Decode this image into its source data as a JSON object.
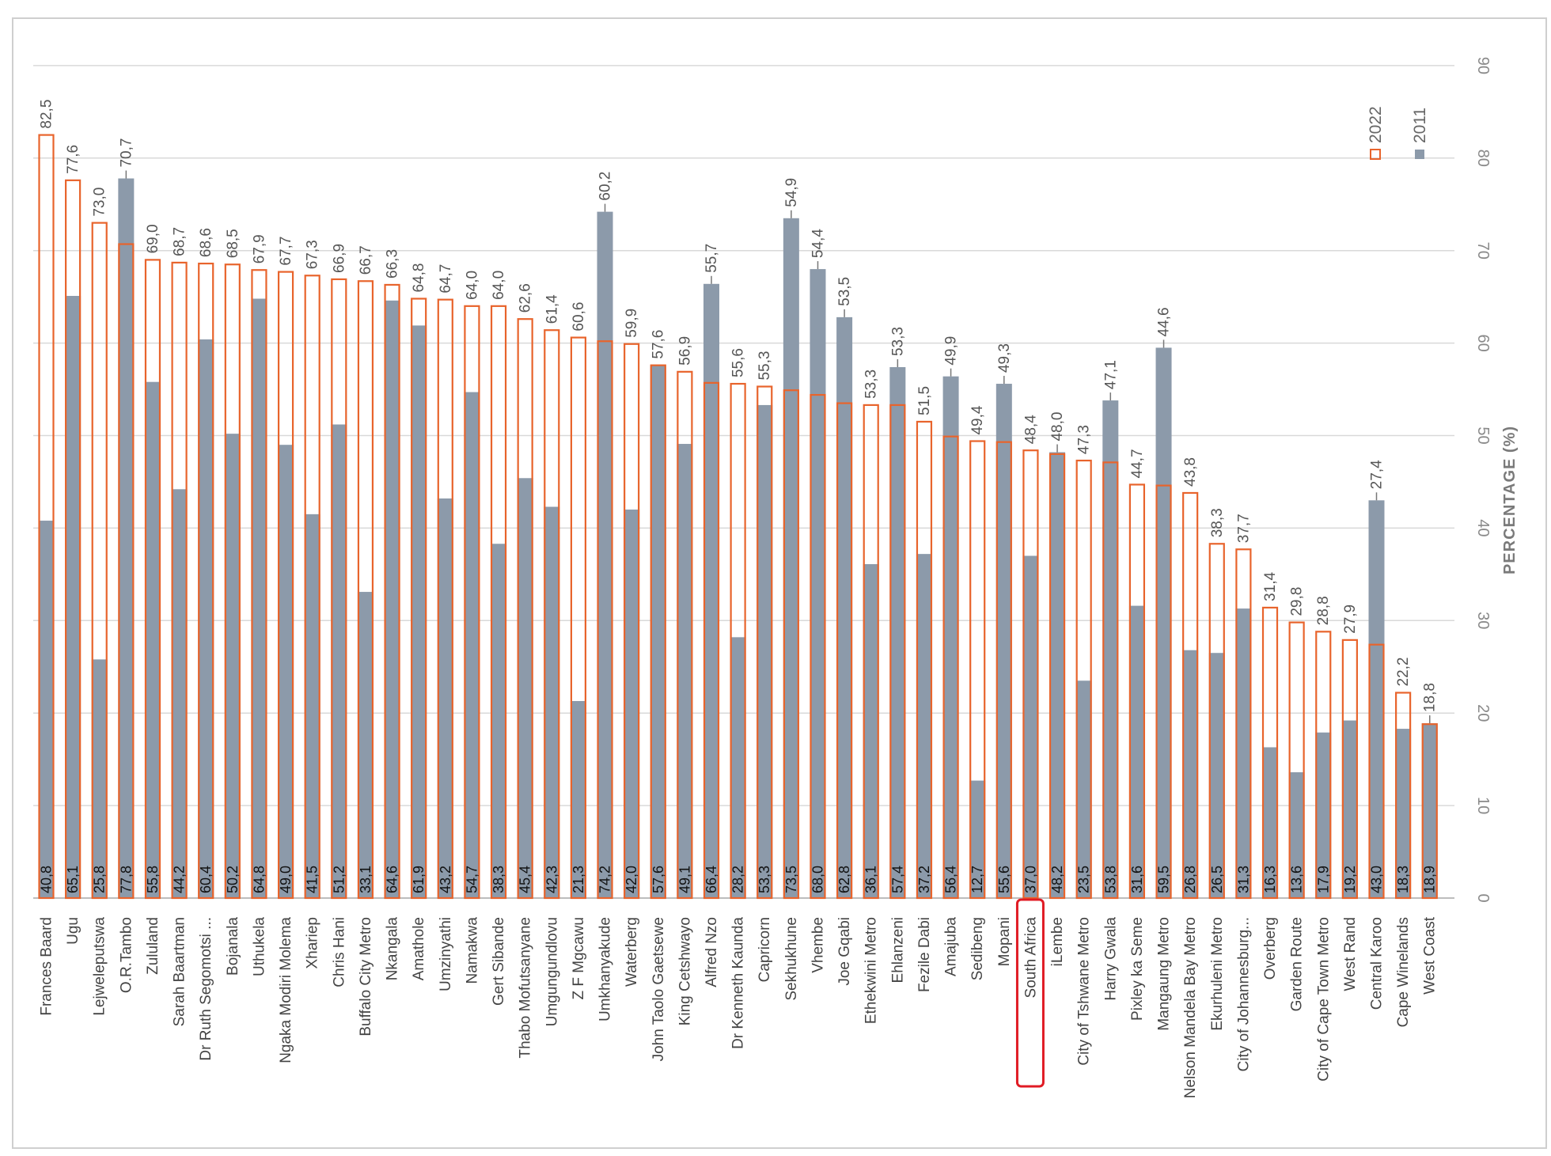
{
  "chart_data": {
    "type": "bar",
    "orientation": "rotated-90-clockwise",
    "title": "",
    "ylabel": "PERCENTAGE (%)",
    "xlabel": "",
    "ylim": [
      0,
      90
    ],
    "yticks": [
      0,
      10,
      20,
      30,
      40,
      50,
      60,
      70,
      80,
      90
    ],
    "highlighted_category": "South Africa",
    "categories": [
      "Frances Baard",
      "Ugu",
      "Lejweleputswa",
      "O.R.Tambo",
      "Zululand",
      "Sarah Baartman",
      "Dr Ruth Segomotsi ...",
      "Bojanala",
      "Uthukela",
      "Ngaka Modiri Molema",
      "Xhariep",
      "Chris Hani",
      "Buffalo City Metro",
      "Nkangala",
      "Amathole",
      "Umzinyathi",
      "Namakwa",
      "Gert Sibande",
      "Thabo Mofutsanyane",
      "Umgungundlovu",
      "Z F Mgcawu",
      "Umkhanyakude",
      "Waterberg",
      "John Taolo Gaetsewe",
      "King Cetshwayo",
      "Alfred Nzo",
      "Dr Kenneth Kaunda",
      "Capricorn",
      "Sekhukhune",
      "Vhembe",
      "Joe Gqabi",
      "Ethekwini Metro",
      "Ehlanzeni",
      "Fezile Dabi",
      "Amajuba",
      "Sedibeng",
      "Mopani",
      "South Africa",
      "iLembe",
      "City of Tshwane Metro",
      "Harry Gwala",
      "Pixley ka Seme",
      "Mangaung Metro",
      "Nelson Mandela Bay Metro",
      "Ekurhuleni Metro",
      "City of Johannesburg...",
      "Overberg",
      "Garden Route",
      "City of Cape Town Metro",
      "West Rand",
      "Central Karoo",
      "Cape Winelands",
      "West Coast"
    ],
    "series": [
      {
        "name": "2022",
        "color": "#e8642c",
        "values": [
          82.5,
          77.6,
          73.0,
          70.7,
          69.0,
          68.7,
          68.6,
          68.5,
          67.9,
          67.7,
          67.3,
          66.9,
          66.7,
          66.3,
          64.8,
          64.7,
          64.0,
          64.0,
          62.6,
          61.4,
          60.6,
          60.2,
          59.9,
          57.6,
          56.9,
          55.7,
          55.6,
          55.3,
          54.9,
          54.4,
          53.5,
          53.3,
          53.3,
          51.5,
          49.9,
          49.4,
          49.3,
          48.4,
          48.0,
          47.3,
          47.1,
          44.7,
          44.6,
          43.8,
          38.3,
          37.7,
          31.4,
          29.8,
          28.8,
          27.9,
          27.4,
          22.2,
          18.8
        ]
      },
      {
        "name": "2011",
        "color": "#8c9aaa",
        "values": [
          40.8,
          65.1,
          25.8,
          77.8,
          55.8,
          44.2,
          60.4,
          50.2,
          64.8,
          49.0,
          41.5,
          51.2,
          33.1,
          64.6,
          61.9,
          43.2,
          54.7,
          38.3,
          45.4,
          42.3,
          21.3,
          74.2,
          42.0,
          57.6,
          49.1,
          66.4,
          28.2,
          53.3,
          73.5,
          68.0,
          62.8,
          36.1,
          57.4,
          37.2,
          56.4,
          12.7,
          55.6,
          37.0,
          48.2,
          23.5,
          53.8,
          31.6,
          59.5,
          26.8,
          26.5,
          31.3,
          16.3,
          13.6,
          17.9,
          19.2,
          43.0,
          18.3,
          18.9
        ]
      }
    ],
    "labels_2022": [
      "82,5",
      "77,6",
      "73,0",
      "70,7",
      "69,0",
      "68,7",
      "68,6",
      "68,5",
      "67,9",
      "67,7",
      "67,3",
      "66,9",
      "66,7",
      "66,3",
      "64,8",
      "64,7",
      "64,0",
      "64,0",
      "62,6",
      "61,4",
      "60,6",
      "60,2",
      "59,9",
      "57,6",
      "56,9",
      "55,7",
      "55,6",
      "55,3",
      "54,9",
      "54,4",
      "53,5",
      "53,3",
      "53,3",
      "51,5",
      "49,9",
      "49,4",
      "49,3",
      "48,4",
      "48,0",
      "47,3",
      "47,1",
      "44,7",
      "44,6",
      "43,8",
      "38,3",
      "37,7",
      "31,4",
      "29,8",
      "28,8",
      "27,9",
      "27,4",
      "22,2",
      "18,8"
    ],
    "labels_2011": [
      "40,8",
      "65,1",
      "25,8",
      "77,8",
      "55,8",
      "44,2",
      "60,4",
      "50,2",
      "64,8",
      "49,0",
      "41,5",
      "51,2",
      "33,1",
      "64,6",
      "61,9",
      "43,2",
      "54,7",
      "38,3",
      "45,4",
      "42,3",
      "21,3",
      "74,2",
      "42,0",
      "57,6",
      "49,1",
      "66,4",
      "28,2",
      "53,3",
      "73,5",
      "68,0",
      "62,8",
      "36,1",
      "57,4",
      "37,2",
      "56,4",
      "12,7",
      "55,6",
      "37,0",
      "48,2",
      "23,5",
      "53,8",
      "31,6",
      "59,5",
      "26,8",
      "26,5",
      "31,3",
      "16,3",
      "13,6",
      "17,9",
      "19,2",
      "43,0",
      "18,3",
      "18,9"
    ],
    "legend": [
      {
        "name": "2022",
        "style": "outline",
        "color": "#e8642c"
      },
      {
        "name": "2011",
        "style": "filled",
        "color": "#8c9aaa"
      }
    ],
    "legend_position": "top-right",
    "grid": true
  }
}
